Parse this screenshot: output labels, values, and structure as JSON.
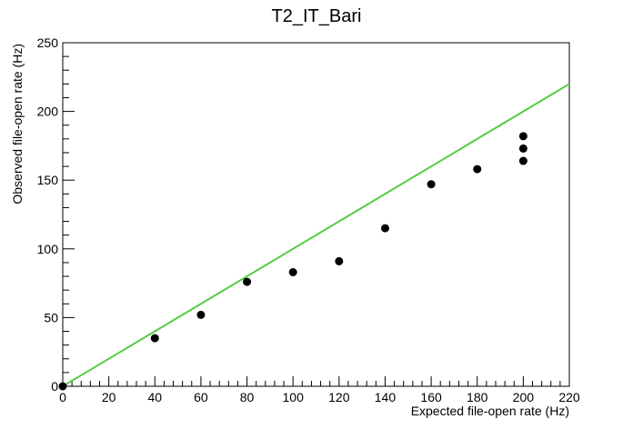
{
  "chart_data": {
    "type": "scatter",
    "title": "T2_IT_Bari",
    "xlabel": "Expected file-open rate (Hz)",
    "ylabel": "Observed file-open rate (Hz)",
    "xlim": [
      0,
      220
    ],
    "ylim": [
      0,
      250
    ],
    "x_ticks": [
      "0",
      "20",
      "40",
      "60",
      "80",
      "100",
      "120",
      "140",
      "160",
      "180",
      "200",
      "220"
    ],
    "y_ticks": [
      "0",
      "50",
      "100",
      "150",
      "200",
      "250"
    ],
    "grid": false,
    "legend": "none",
    "series": [
      {
        "type": "scatter",
        "color": "#000000",
        "x": [
          0,
          40,
          60,
          80,
          100,
          120,
          140,
          160,
          180,
          200,
          200,
          200
        ],
        "y": [
          0,
          35,
          52,
          76,
          83,
          91,
          115,
          147,
          158,
          182,
          173,
          164
        ]
      },
      {
        "type": "line",
        "color": "#55cc44",
        "x": [
          0,
          220
        ],
        "y": [
          0,
          220
        ]
      }
    ]
  }
}
